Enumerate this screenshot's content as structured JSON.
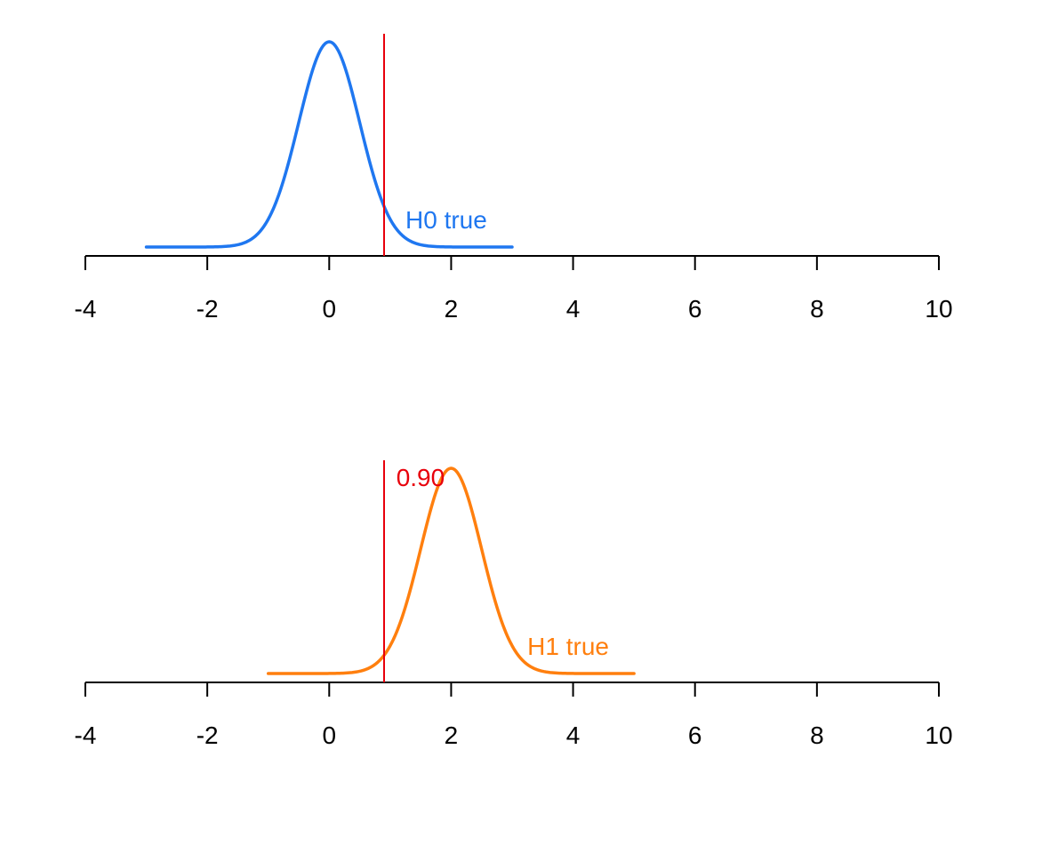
{
  "chart_data": [
    {
      "type": "line",
      "xlim": [
        -4,
        10
      ],
      "xticks": [
        -4,
        -2,
        0,
        2,
        4,
        6,
        8,
        10
      ],
      "tick_labels": [
        "-4",
        "-2",
        "0",
        "2",
        "4",
        "6",
        "8",
        "10"
      ],
      "series": [
        {
          "name": "H0 true",
          "color": "#1f77f0",
          "mean": 0,
          "sd": 0.5,
          "x_range": [
            -3,
            3
          ]
        }
      ],
      "annotations": [
        {
          "text": "H0 true",
          "x": 1.25,
          "color": "#1f77f0",
          "anchor": "curve-tail"
        }
      ],
      "vline": {
        "x": 0.9,
        "color": "#e8000b"
      }
    },
    {
      "type": "line",
      "xlim": [
        -4,
        10
      ],
      "xticks": [
        -4,
        -2,
        0,
        2,
        4,
        6,
        8,
        10
      ],
      "tick_labels": [
        "-4",
        "-2",
        "0",
        "2",
        "4",
        "6",
        "8",
        "10"
      ],
      "series": [
        {
          "name": "H1 true",
          "color": "#ff7f0e",
          "mean": 2,
          "sd": 0.5,
          "x_range": [
            -1,
            5
          ]
        }
      ],
      "annotations": [
        {
          "text": "H1 true",
          "x": 3.25,
          "color": "#ff7f0e",
          "anchor": "curve-tail"
        },
        {
          "text": "0.90",
          "x": 1.1,
          "color": "#e8000b",
          "anchor": "top"
        }
      ],
      "vline": {
        "x": 0.9,
        "color": "#e8000b"
      }
    }
  ]
}
